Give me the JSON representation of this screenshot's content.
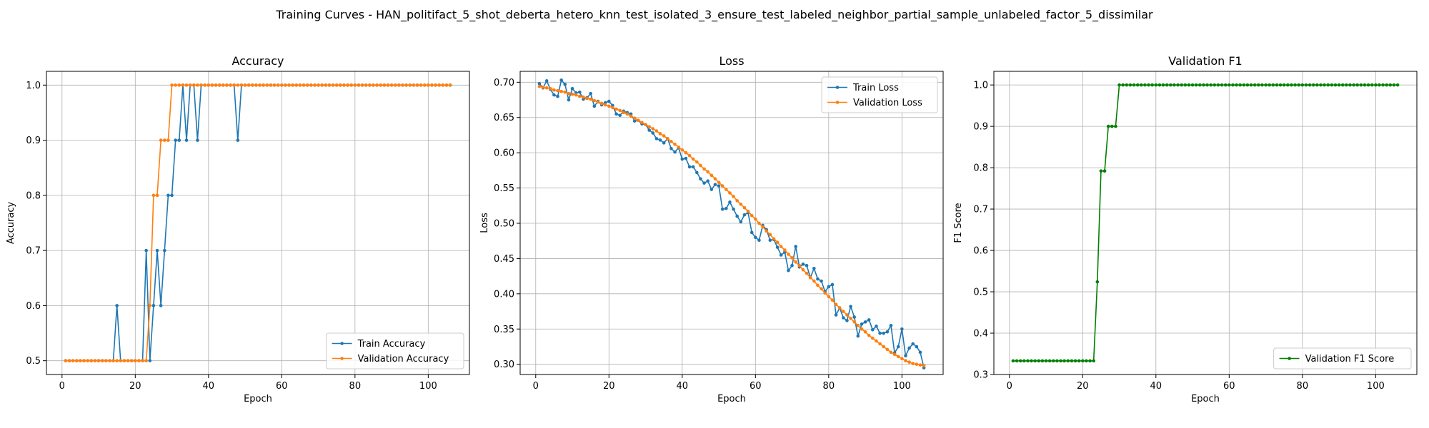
{
  "figure": {
    "suptitle": "Training Curves - HAN_politifact_5_shot_deberta_hetero_knn_test_isolated_3_ensure_test_labeled_neighbor_partial_sample_unlabeled_factor_5_dissimilar"
  },
  "colors": {
    "train": "#1f77b4",
    "validation": "#ff7f0e",
    "f1": "#008000",
    "grid": "#b0b0b0"
  },
  "chart_data": [
    {
      "type": "line",
      "title": "Accuracy",
      "xlabel": "Epoch",
      "ylabel": "Accuracy",
      "xlim": [
        -4.25,
        111.25
      ],
      "ylim": [
        0.475,
        1.025
      ],
      "xticks": [
        0,
        20,
        40,
        60,
        80,
        100
      ],
      "yticks": [
        0.5,
        0.6,
        0.7,
        0.8,
        0.9,
        1.0
      ],
      "ytick_labels": [
        "0.5",
        "0.6",
        "0.7",
        "0.8",
        "0.9",
        "1.0"
      ],
      "grid": true,
      "legend": "lower-right",
      "x_start": 1,
      "series": [
        {
          "name": "Train Accuracy",
          "color": "#1f77b4",
          "values": [
            0.5,
            0.5,
            0.5,
            0.5,
            0.5,
            0.5,
            0.5,
            0.5,
            0.5,
            0.5,
            0.5,
            0.5,
            0.5,
            0.5,
            0.6,
            0.5,
            0.5,
            0.5,
            0.5,
            0.5,
            0.5,
            0.5,
            0.7,
            0.5,
            0.6,
            0.7,
            0.6,
            0.7,
            0.8,
            0.8,
            0.9,
            0.9,
            1.0,
            0.9,
            1.0,
            1.0,
            0.9,
            1.0,
            1.0,
            1.0,
            1.0,
            1.0,
            1.0,
            1.0,
            1.0,
            1.0,
            1.0,
            0.9,
            1.0,
            1.0,
            1.0,
            1.0,
            1.0,
            1.0,
            1.0,
            1.0,
            1.0,
            1.0,
            1.0,
            1.0,
            1.0,
            1.0,
            1.0,
            1.0,
            1.0,
            1.0,
            1.0,
            1.0,
            1.0,
            1.0,
            1.0,
            1.0,
            1.0,
            1.0,
            1.0,
            1.0,
            1.0,
            1.0,
            1.0,
            1.0,
            1.0,
            1.0,
            1.0,
            1.0,
            1.0,
            1.0,
            1.0,
            1.0,
            1.0,
            1.0,
            1.0,
            1.0,
            1.0,
            1.0,
            1.0,
            1.0,
            1.0,
            1.0,
            1.0,
            1.0,
            1.0,
            1.0,
            1.0,
            1.0,
            1.0,
            1.0
          ]
        },
        {
          "name": "Validation Accuracy",
          "color": "#ff7f0e",
          "values": [
            0.5,
            0.5,
            0.5,
            0.5,
            0.5,
            0.5,
            0.5,
            0.5,
            0.5,
            0.5,
            0.5,
            0.5,
            0.5,
            0.5,
            0.5,
            0.5,
            0.5,
            0.5,
            0.5,
            0.5,
            0.5,
            0.5,
            0.5,
            0.6,
            0.8,
            0.8,
            0.9,
            0.9,
            0.9,
            1.0,
            1.0,
            1.0,
            1.0,
            1.0,
            1.0,
            1.0,
            1.0,
            1.0,
            1.0,
            1.0,
            1.0,
            1.0,
            1.0,
            1.0,
            1.0,
            1.0,
            1.0,
            1.0,
            1.0,
            1.0,
            1.0,
            1.0,
            1.0,
            1.0,
            1.0,
            1.0,
            1.0,
            1.0,
            1.0,
            1.0,
            1.0,
            1.0,
            1.0,
            1.0,
            1.0,
            1.0,
            1.0,
            1.0,
            1.0,
            1.0,
            1.0,
            1.0,
            1.0,
            1.0,
            1.0,
            1.0,
            1.0,
            1.0,
            1.0,
            1.0,
            1.0,
            1.0,
            1.0,
            1.0,
            1.0,
            1.0,
            1.0,
            1.0,
            1.0,
            1.0,
            1.0,
            1.0,
            1.0,
            1.0,
            1.0,
            1.0,
            1.0,
            1.0,
            1.0,
            1.0,
            1.0,
            1.0,
            1.0,
            1.0,
            1.0,
            1.0
          ]
        }
      ]
    },
    {
      "type": "line",
      "title": "Loss",
      "xlabel": "Epoch",
      "ylabel": "Loss",
      "xlim": [
        -4.25,
        111.25
      ],
      "ylim": [
        0.2855,
        0.7155
      ],
      "xticks": [
        0,
        20,
        40,
        60,
        80,
        100
      ],
      "yticks": [
        0.3,
        0.35,
        0.4,
        0.45,
        0.5,
        0.55,
        0.6,
        0.65,
        0.7
      ],
      "ytick_labels": [
        "0.30",
        "0.35",
        "0.40",
        "0.45",
        "0.50",
        "0.55",
        "0.60",
        "0.65",
        "0.70"
      ],
      "grid": true,
      "legend": "upper-right",
      "x_start": 1,
      "series": [
        {
          "name": "Train Loss",
          "color": "#1f77b4",
          "values": [
            0.698,
            0.692,
            0.702,
            0.69,
            0.682,
            0.68,
            0.703,
            0.697,
            0.675,
            0.691,
            0.685,
            0.686,
            0.676,
            0.678,
            0.684,
            0.666,
            0.673,
            0.668,
            0.671,
            0.673,
            0.667,
            0.655,
            0.653,
            0.659,
            0.657,
            0.655,
            0.645,
            0.646,
            0.641,
            0.64,
            0.632,
            0.628,
            0.62,
            0.618,
            0.614,
            0.62,
            0.606,
            0.601,
            0.607,
            0.591,
            0.592,
            0.58,
            0.58,
            0.572,
            0.563,
            0.557,
            0.56,
            0.548,
            0.555,
            0.553,
            0.52,
            0.521,
            0.53,
            0.52,
            0.51,
            0.502,
            0.512,
            0.515,
            0.487,
            0.48,
            0.476,
            0.497,
            0.491,
            0.476,
            0.477,
            0.466,
            0.455,
            0.459,
            0.433,
            0.44,
            0.467,
            0.438,
            0.442,
            0.44,
            0.423,
            0.436,
            0.421,
            0.418,
            0.403,
            0.41,
            0.413,
            0.37,
            0.38,
            0.366,
            0.362,
            0.382,
            0.367,
            0.34,
            0.357,
            0.36,
            0.363,
            0.349,
            0.354,
            0.344,
            0.344,
            0.346,
            0.355,
            0.316,
            0.325,
            0.35,
            0.312,
            0.323,
            0.329,
            0.325,
            0.317,
            0.295
          ]
        },
        {
          "name": "Validation Loss",
          "color": "#ff7f0e",
          "values": [
            0.694,
            0.693,
            0.692,
            0.691,
            0.689,
            0.688,
            0.687,
            0.686,
            0.684,
            0.683,
            0.682,
            0.68,
            0.679,
            0.677,
            0.676,
            0.674,
            0.672,
            0.67,
            0.668,
            0.666,
            0.664,
            0.662,
            0.66,
            0.657,
            0.655,
            0.652,
            0.649,
            0.646,
            0.643,
            0.64,
            0.637,
            0.634,
            0.631,
            0.627,
            0.624,
            0.62,
            0.616,
            0.612,
            0.608,
            0.604,
            0.6,
            0.596,
            0.591,
            0.587,
            0.582,
            0.577,
            0.573,
            0.568,
            0.563,
            0.558,
            0.553,
            0.548,
            0.543,
            0.538,
            0.532,
            0.527,
            0.522,
            0.517,
            0.511,
            0.506,
            0.5,
            0.495,
            0.489,
            0.484,
            0.478,
            0.473,
            0.467,
            0.462,
            0.456,
            0.451,
            0.445,
            0.44,
            0.434,
            0.429,
            0.423,
            0.418,
            0.412,
            0.407,
            0.401,
            0.396,
            0.391,
            0.385,
            0.38,
            0.375,
            0.37,
            0.365,
            0.36,
            0.355,
            0.35,
            0.346,
            0.341,
            0.337,
            0.333,
            0.329,
            0.325,
            0.321,
            0.317,
            0.314,
            0.311,
            0.308,
            0.305,
            0.303,
            0.301,
            0.3,
            0.299,
            0.298
          ]
        }
      ]
    },
    {
      "type": "line",
      "title": "Validation F1",
      "xlabel": "Epoch",
      "ylabel": "F1 Score",
      "xlim": [
        -4.25,
        111.25
      ],
      "ylim": [
        0.3,
        1.033
      ],
      "xticks": [
        0,
        20,
        40,
        60,
        80,
        100
      ],
      "yticks": [
        0.3,
        0.4,
        0.5,
        0.6,
        0.7,
        0.8,
        0.9,
        1.0
      ],
      "ytick_labels": [
        "0.3",
        "0.4",
        "0.5",
        "0.6",
        "0.7",
        "0.8",
        "0.9",
        "1.0"
      ],
      "grid": true,
      "legend": "lower-right",
      "x_start": 1,
      "series": [
        {
          "name": "Validation F1 Score",
          "color": "#008000",
          "values": [
            0.333,
            0.333,
            0.333,
            0.333,
            0.333,
            0.333,
            0.333,
            0.333,
            0.333,
            0.333,
            0.333,
            0.333,
            0.333,
            0.333,
            0.333,
            0.333,
            0.333,
            0.333,
            0.333,
            0.333,
            0.333,
            0.333,
            0.333,
            0.524,
            0.792,
            0.792,
            0.9,
            0.9,
            0.9,
            1.0,
            1.0,
            1.0,
            1.0,
            1.0,
            1.0,
            1.0,
            1.0,
            1.0,
            1.0,
            1.0,
            1.0,
            1.0,
            1.0,
            1.0,
            1.0,
            1.0,
            1.0,
            1.0,
            1.0,
            1.0,
            1.0,
            1.0,
            1.0,
            1.0,
            1.0,
            1.0,
            1.0,
            1.0,
            1.0,
            1.0,
            1.0,
            1.0,
            1.0,
            1.0,
            1.0,
            1.0,
            1.0,
            1.0,
            1.0,
            1.0,
            1.0,
            1.0,
            1.0,
            1.0,
            1.0,
            1.0,
            1.0,
            1.0,
            1.0,
            1.0,
            1.0,
            1.0,
            1.0,
            1.0,
            1.0,
            1.0,
            1.0,
            1.0,
            1.0,
            1.0,
            1.0,
            1.0,
            1.0,
            1.0,
            1.0,
            1.0,
            1.0,
            1.0,
            1.0,
            1.0,
            1.0,
            1.0,
            1.0,
            1.0,
            1.0,
            1.0
          ]
        }
      ]
    }
  ]
}
